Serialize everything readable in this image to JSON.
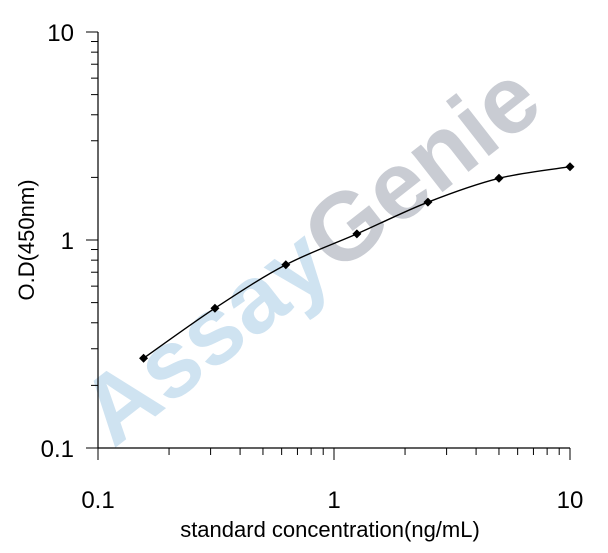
{
  "chart_data": {
    "type": "line",
    "x_scale": "log",
    "y_scale": "log",
    "xlabel": "standard concentration(ng/mL)",
    "ylabel": "O.D(450nm)",
    "xlim": [
      0.1,
      10
    ],
    "ylim": [
      0.1,
      10
    ],
    "x_tick_labels": [
      "0.1",
      "1",
      "10"
    ],
    "y_tick_labels": [
      "10",
      "1",
      "0.1"
    ],
    "grid": false,
    "series": [
      {
        "x": [
          0.156,
          0.313,
          0.625,
          1.25,
          2.5,
          5,
          10
        ],
        "y": [
          0.27,
          0.47,
          0.76,
          1.07,
          1.52,
          1.98,
          2.25
        ]
      }
    ],
    "marker": "diamond",
    "line_color": "#000000",
    "watermark": {
      "parts": [
        "Assay",
        "Genie"
      ],
      "colors": [
        "#cfe3f1",
        "#c9ccd3"
      ]
    }
  }
}
